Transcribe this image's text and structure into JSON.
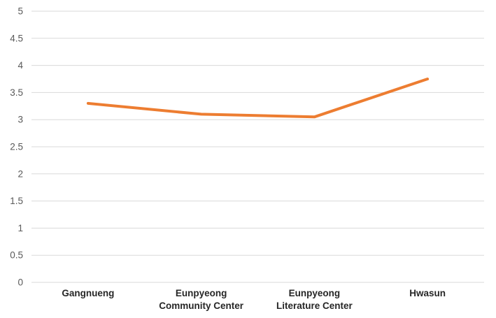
{
  "chart_data": {
    "type": "line",
    "categories": [
      "Gangnueng",
      "Eunpyeong Community Center",
      "Eunpyeong Literature Center",
      "Hwasun"
    ],
    "values": [
      3.3,
      3.1,
      3.05,
      3.75
    ],
    "title": "",
    "xlabel": "",
    "ylabel": "",
    "ylim": [
      0,
      5
    ],
    "ytick_step": 0.5,
    "ytick_labels": [
      "0",
      "0.5",
      "1",
      "1.5",
      "2",
      "2.5",
      "3",
      "3.5",
      "4",
      "4.5",
      "5"
    ],
    "grid": true,
    "legend_position": "none",
    "line_color": "#ED7D31",
    "gridline_color": "#D9D9D9",
    "ytick_label_color": "#595959",
    "category_label_color": "#262626",
    "background_color": "#FFFFFF"
  }
}
